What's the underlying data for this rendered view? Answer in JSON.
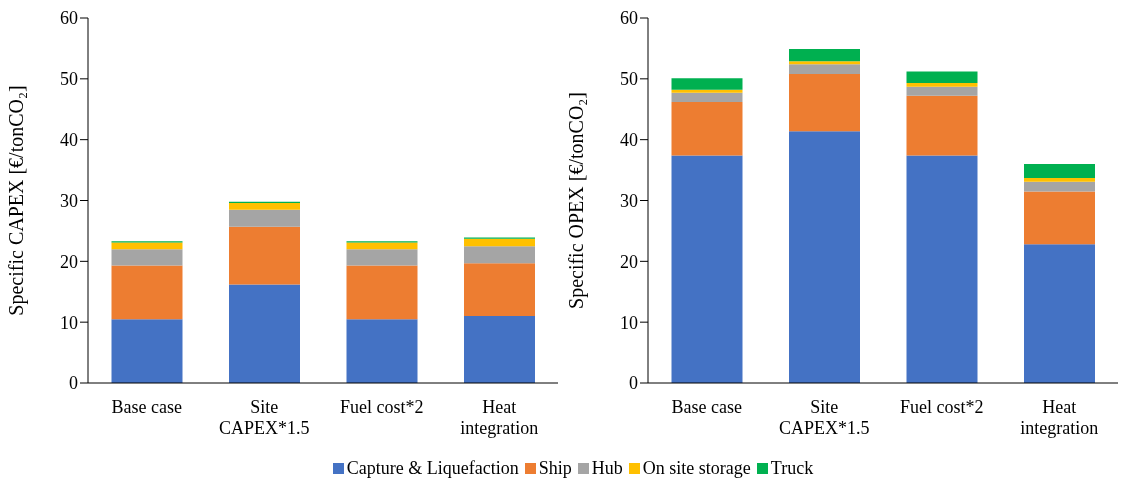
{
  "chart_data": [
    {
      "type": "bar",
      "stacked": true,
      "ylabel": "Specific CAPEX [€/tonCO₂]",
      "categories": [
        "Base case",
        "Site CAPEX*1.5",
        "Fuel cost*2",
        "Heat integration"
      ],
      "ylim": [
        0,
        60
      ],
      "yticks": [
        0,
        10,
        20,
        30,
        40,
        50,
        60
      ],
      "grid": false,
      "legend": false,
      "series": [
        {
          "color": "#4472c4",
          "values": [
            10.5,
            16.2,
            10.5,
            11.0
          ]
        },
        {
          "color": "#ed7d31",
          "values": [
            8.8,
            9.5,
            8.8,
            8.7
          ]
        },
        {
          "color": "#a5a5a5",
          "values": [
            2.7,
            2.8,
            2.7,
            2.8
          ]
        },
        {
          "color": "#ffc000",
          "values": [
            1.1,
            1.1,
            1.1,
            1.2
          ]
        },
        {
          "color": "#00b050",
          "values": [
            0.2,
            0.2,
            0.2,
            0.2
          ]
        }
      ]
    },
    {
      "type": "bar",
      "stacked": true,
      "ylabel": "Specific OPEX [€/tonCO₂]",
      "categories": [
        "Base case",
        "Site CAPEX*1.5",
        "Fuel cost*2",
        "Heat integration"
      ],
      "ylim": [
        0,
        60
      ],
      "yticks": [
        0,
        10,
        20,
        30,
        40,
        50,
        60
      ],
      "grid": false,
      "legend": "bottom",
      "series": [
        {
          "name": "Capture & Liquefaction",
          "color": "#4472c4",
          "values": [
            37.4,
            41.4,
            37.4,
            22.8
          ]
        },
        {
          "name": "Ship",
          "color": "#ed7d31",
          "values": [
            8.8,
            9.4,
            9.8,
            8.7
          ]
        },
        {
          "name": "Hub",
          "color": "#a5a5a5",
          "values": [
            1.5,
            1.6,
            1.5,
            1.6
          ]
        },
        {
          "name": "On site storage",
          "color": "#ffc000",
          "values": [
            0.5,
            0.5,
            0.6,
            0.6
          ]
        },
        {
          "name": "Truck",
          "color": "#00b050",
          "values": [
            1.9,
            2.0,
            1.9,
            2.3
          ]
        }
      ]
    }
  ]
}
